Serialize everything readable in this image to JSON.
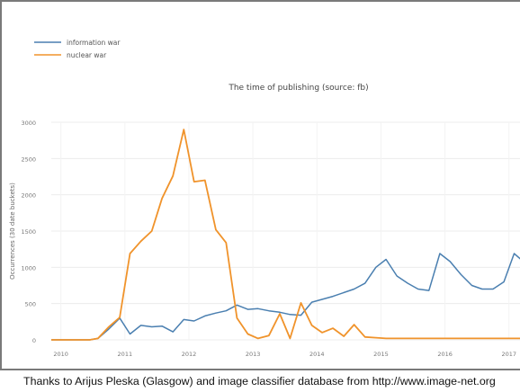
{
  "chart_data": {
    "type": "line",
    "title": "The time of publishing (source: fb)",
    "ylabel": "Occurrences (30 date buckets)",
    "xlabel": "",
    "ylim": [
      0,
      3000
    ],
    "yticks": [
      0,
      500,
      1000,
      1500,
      2000,
      2500,
      3000
    ],
    "ytick_labels": [
      "0",
      "500",
      "1000",
      "1500",
      "2000",
      "2500",
      "3000"
    ],
    "xlim": [
      2009.85,
      2017.2
    ],
    "xticks": [
      2010,
      2011,
      2012,
      2013,
      2014,
      2015,
      2016,
      2017
    ],
    "xtick_labels": [
      "2010",
      "2011",
      "2012",
      "2013",
      "2014",
      "2015",
      "2016",
      "2017"
    ],
    "grid": true,
    "legend_position": "top-left",
    "series": [
      {
        "name": "information war",
        "color": "#4a7fb0",
        "x": [
          2009.85,
          2010.15,
          2010.45,
          2010.58,
          2010.75,
          2010.92,
          2011.08,
          2011.25,
          2011.42,
          2011.58,
          2011.75,
          2011.92,
          2012.08,
          2012.25,
          2012.42,
          2012.58,
          2012.75,
          2012.92,
          2013.08,
          2013.25,
          2013.42,
          2013.58,
          2013.75,
          2013.92,
          2014.25,
          2014.58,
          2014.75,
          2014.92,
          2015.08,
          2015.25,
          2015.42,
          2015.58,
          2015.75,
          2015.92,
          2016.08,
          2016.25,
          2016.42,
          2016.58,
          2016.75,
          2016.92,
          2017.08,
          2017.2
        ],
        "y": [
          0,
          0,
          0,
          20,
          150,
          300,
          80,
          200,
          180,
          190,
          110,
          280,
          260,
          330,
          370,
          400,
          480,
          420,
          430,
          400,
          380,
          350,
          340,
          520,
          600,
          700,
          780,
          1000,
          1110,
          880,
          780,
          700,
          680,
          1190,
          1080,
          900,
          750,
          700,
          700,
          800,
          1190,
          1100
        ]
      },
      {
        "name": "nuclear war",
        "color": "#f0932b",
        "x": [
          2009.85,
          2010.15,
          2010.45,
          2010.58,
          2010.75,
          2010.92,
          2011.08,
          2011.25,
          2011.42,
          2011.58,
          2011.75,
          2011.92,
          2012.08,
          2012.25,
          2012.42,
          2012.58,
          2012.75,
          2012.92,
          2013.08,
          2013.25,
          2013.42,
          2013.58,
          2013.75,
          2013.92,
          2014.08,
          2014.25,
          2014.42,
          2014.58,
          2014.75,
          2014.92,
          2015.08,
          2015.25,
          2015.42,
          2015.58,
          2015.75,
          2015.92,
          2016.08,
          2016.25,
          2016.42,
          2016.58,
          2016.75,
          2016.92,
          2017.08,
          2017.2
        ],
        "y": [
          0,
          0,
          0,
          20,
          180,
          310,
          1190,
          1360,
          1500,
          1950,
          2260,
          2900,
          2180,
          2200,
          1520,
          1340,
          300,
          80,
          20,
          60,
          360,
          20,
          510,
          200,
          100,
          160,
          50,
          210,
          40,
          30,
          20,
          20,
          20,
          20,
          20,
          20,
          20,
          20,
          20,
          20,
          20,
          20,
          20,
          20
        ]
      }
    ]
  },
  "caption": "Thanks to Arijus Pleska (Glasgow) and image classifier database from  http://www.image-net.org"
}
